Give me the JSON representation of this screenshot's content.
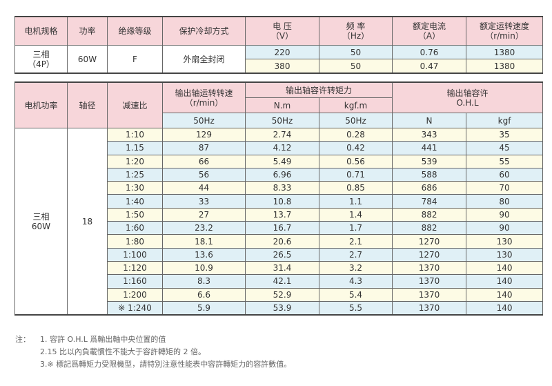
{
  "spec_table": {
    "headers": [
      "电机规格",
      "功率",
      "绝缘等级",
      "保护冷却方式",
      "电 压",
      "频 率",
      "额定电流",
      "额定运转速度"
    ],
    "units": [
      "（V）",
      "（Hz）",
      "（A）",
      "（r/min）"
    ],
    "spec": "三相",
    "poles": "（4P）",
    "power": "60W",
    "insulation": "F",
    "cooling": "外扇全封闭",
    "rows": [
      [
        "220",
        "50",
        "0.76",
        "1380"
      ],
      [
        "380",
        "50",
        "0.47",
        "1380"
      ]
    ]
  },
  "perf_table": {
    "h_power": "电机功率",
    "h_shaft": "轴径",
    "h_ratio": "减速比",
    "h_speed": "输出轴运转转速",
    "h_speed_unit": "（r/min）",
    "h_torque": "输出轴容许转矩力",
    "h_nm": "N.m",
    "h_kgfm": "kgf.m",
    "h_ohl": "输出轴容许",
    "h_ohl2": "O.H.L",
    "h_n": "N",
    "h_kgf": "kgf",
    "hz": "50Hz",
    "motor": "三相",
    "motor_power": "60W",
    "shaft": "18",
    "rows": [
      [
        "1:10",
        "129",
        "2.74",
        "0.28",
        "343",
        "35"
      ],
      [
        "1.15",
        "87",
        "4.12",
        "0.42",
        "441",
        "45"
      ],
      [
        "1:20",
        "66",
        "5.49",
        "0.56",
        "539",
        "55"
      ],
      [
        "1:25",
        "56",
        "6.96",
        "0.71",
        "588",
        "60"
      ],
      [
        "1:30",
        "44",
        "8.33",
        "0.85",
        "686",
        "70"
      ],
      [
        "1:40",
        "33",
        "10.8",
        "1.1",
        "784",
        "80"
      ],
      [
        "1:50",
        "27",
        "13.7",
        "1.4",
        "882",
        "90"
      ],
      [
        "1:60",
        "23.2",
        "16.7",
        "1.7",
        "882",
        "90"
      ],
      [
        "1:80",
        "18.1",
        "20.6",
        "2.1",
        "1270",
        "130"
      ],
      [
        "1:100",
        "13.6",
        "26.5",
        "2.7",
        "1270",
        "130"
      ],
      [
        "1:120",
        "10.9",
        "31.4",
        "3.2",
        "1370",
        "140"
      ],
      [
        "1:160",
        "8.3",
        "42.1",
        "4.3",
        "1370",
        "140"
      ],
      [
        "1:200",
        "6.6",
        "52.9",
        "5.4",
        "1370",
        "140"
      ],
      [
        "※ 1:240",
        "5.9",
        "53.9",
        "5.5",
        "1370",
        "140"
      ]
    ]
  },
  "notes": {
    "label": "注：",
    "items": [
      "1. 容許 O.H.L 爲輸出軸中央位置的值",
      "2.15 比以內負載慣性不能大于容許轉矩的 2 倍。",
      "3.※ 標記爲轉矩力受限機型，請特別注意性能表中容許轉矩力的容許數值。"
    ]
  },
  "colors": {
    "header": "#f7d6da",
    "blue": "#e0f0f6",
    "yellow": "#fdfbe5"
  }
}
